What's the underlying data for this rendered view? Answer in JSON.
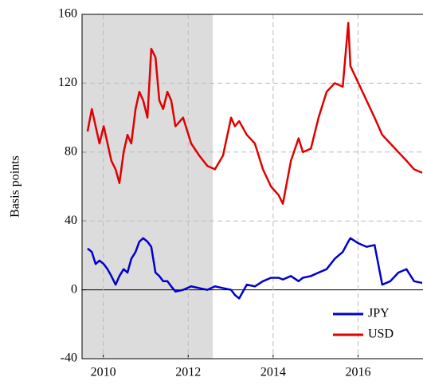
{
  "chart_data": {
    "type": "line",
    "y_label": "Basis points",
    "x": [
      2009.63,
      2009.73,
      2009.82,
      2009.91,
      2010.01,
      2010.1,
      2010.19,
      2010.29,
      2010.38,
      2010.48,
      2010.57,
      2010.66,
      2010.76,
      2010.85,
      2010.94,
      2011.04,
      2011.13,
      2011.23,
      2011.32,
      2011.41,
      2011.51,
      2011.6,
      2011.7,
      2011.88,
      2012.07,
      2012.26,
      2012.45,
      2012.63,
      2012.82,
      2013.01,
      2013.1,
      2013.2,
      2013.38,
      2013.57,
      2013.76,
      2013.95,
      2014.13,
      2014.23,
      2014.42,
      2014.6,
      2014.7,
      2014.89,
      2015.07,
      2015.26,
      2015.45,
      2015.64,
      2015.77,
      2015.82,
      2016.01,
      2016.2,
      2016.39,
      2016.57,
      2016.76,
      2016.95,
      2017.14,
      2017.32,
      2017.51
    ],
    "series": [
      {
        "name": "JPY",
        "color": "#0000cc",
        "values": [
          24,
          22,
          15,
          17,
          15,
          12,
          8,
          3,
          8,
          12,
          10,
          18,
          22,
          28,
          30,
          28,
          25,
          10,
          8,
          5,
          5,
          2,
          -1,
          0,
          2,
          1,
          0,
          2,
          1,
          0,
          -3,
          -5,
          3,
          2,
          5,
          7,
          7,
          6,
          8,
          5,
          7,
          8,
          10,
          12,
          18,
          22,
          28,
          30,
          27,
          25,
          26,
          3,
          5,
          10,
          12,
          5,
          4
        ]
      },
      {
        "name": "USD",
        "color": "#e00000",
        "values": [
          92,
          105,
          95,
          85,
          95,
          85,
          75,
          70,
          62,
          80,
          90,
          85,
          105,
          115,
          110,
          100,
          140,
          135,
          110,
          105,
          115,
          110,
          95,
          100,
          85,
          78,
          72,
          70,
          78,
          100,
          95,
          98,
          90,
          85,
          70,
          60,
          55,
          50,
          75,
          88,
          80,
          82,
          100,
          115,
          120,
          118,
          155,
          130,
          120,
          110,
          100,
          90,
          85,
          80,
          75,
          70,
          68
        ]
      }
    ],
    "xlim": [
      2009.5,
      2017.53
    ],
    "xticks": [
      2010,
      2012,
      2014,
      2016
    ],
    "ylim": [
      -40,
      160
    ],
    "yticks": [
      -40,
      0,
      40,
      80,
      120,
      160
    ],
    "shaded_x": [
      2009.5,
      2012.58
    ],
    "grid": true,
    "legend": "lower right"
  }
}
